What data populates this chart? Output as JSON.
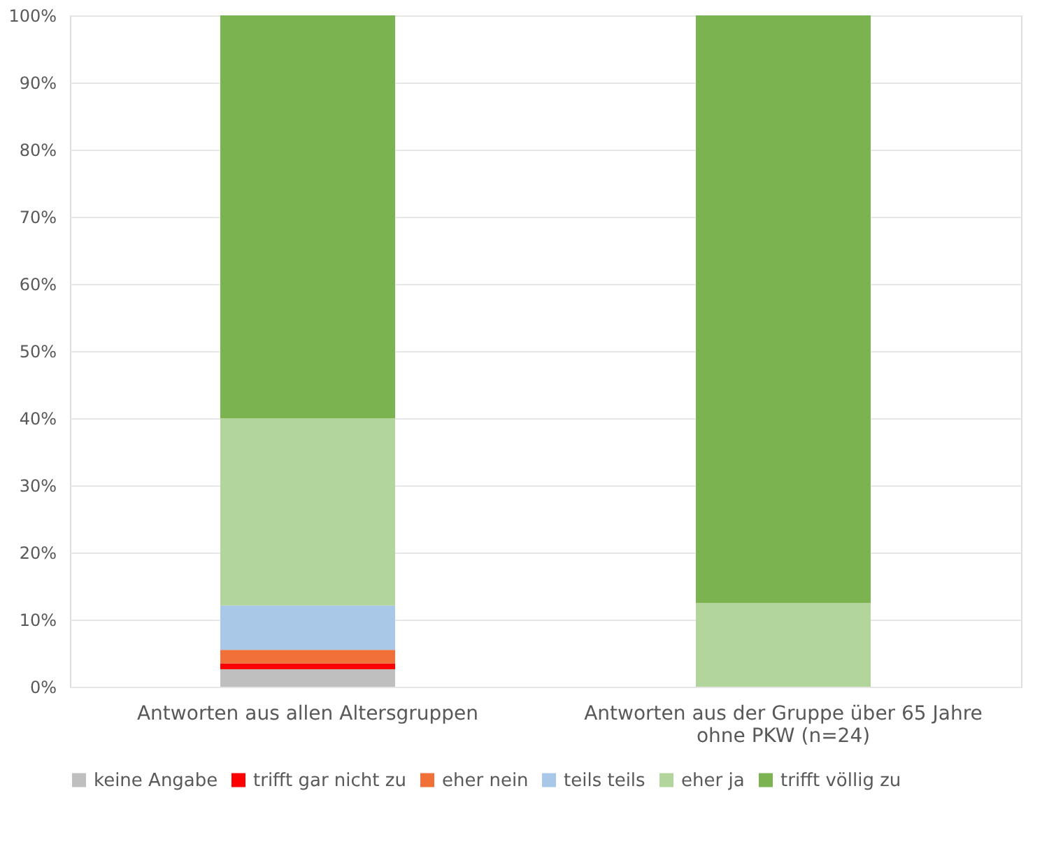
{
  "chart_data": {
    "type": "bar",
    "stacked": true,
    "categories": [
      "Antworten aus allen Altersgruppen",
      "Antworten aus der Gruppe über 65 Jahre ohne PKW (n=24)"
    ],
    "series": [
      {
        "name": "keine Angabe",
        "color": "#bfbfbf",
        "values": [
          2.6,
          0
        ]
      },
      {
        "name": "trifft gar nicht zu",
        "color": "#ff0000",
        "values": [
          0.9,
          0
        ]
      },
      {
        "name": "eher nein",
        "color": "#f07038",
        "values": [
          2.0,
          0
        ]
      },
      {
        "name": "teils teils",
        "color": "#a9c8e8",
        "values": [
          6.6,
          0
        ]
      },
      {
        "name": "eher ja",
        "color": "#b2d59b",
        "values": [
          27.9,
          12.5
        ]
      },
      {
        "name": "trifft völlig zu",
        "color": "#7ab350",
        "values": [
          60.0,
          87.5
        ]
      }
    ],
    "ylim": [
      0,
      100
    ],
    "yticks": [
      {
        "value": 0,
        "label": "0%"
      },
      {
        "value": 10,
        "label": "10%"
      },
      {
        "value": 20,
        "label": "20%"
      },
      {
        "value": 30,
        "label": "30%"
      },
      {
        "value": 40,
        "label": "40%"
      },
      {
        "value": 50,
        "label": "50%"
      },
      {
        "value": 60,
        "label": "60%"
      },
      {
        "value": 70,
        "label": "70%"
      },
      {
        "value": 80,
        "label": "80%"
      },
      {
        "value": 90,
        "label": "90%"
      },
      {
        "value": 100,
        "label": "100%"
      }
    ],
    "grid": "y",
    "legend": "bottom"
  }
}
